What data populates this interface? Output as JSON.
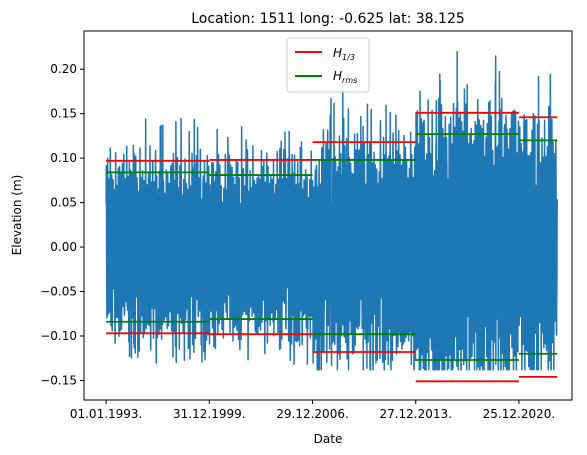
{
  "chart_data": {
    "type": "line",
    "title": "Location: 1511 long: -0.625 lat: 38.125",
    "xlabel": "Date",
    "ylabel": "Elevation (m)",
    "x_ticks": [
      "01.01.1993.",
      "31.12.1999.",
      "29.12.2006.",
      "27.12.2013.",
      "25.12.2020."
    ],
    "x_range": [
      "1993-01",
      "2023-07"
    ],
    "ylim": [
      -0.172,
      0.243
    ],
    "y_ticks": [
      -0.15,
      -0.1,
      -0.05,
      0.0,
      0.05,
      0.1,
      0.15,
      0.2
    ],
    "y_tick_labels": [
      "−0.15",
      "−0.10",
      "−0.05",
      "0.00",
      "0.05",
      "0.10",
      "0.15",
      "0.20"
    ],
    "legend": {
      "position": "top-center",
      "entries": [
        {
          "label_main": "H",
          "label_sub": "1/3",
          "color": "#ff0000"
        },
        {
          "label_main": "H",
          "label_sub": "rms",
          "color": "#008000"
        }
      ]
    },
    "series": [
      {
        "name": "Elevation",
        "color": "#1f77b4",
        "x_range_years": [
          1993.0,
          2023.6
        ],
        "y_range": [
          -0.138,
          0.225
        ],
        "description": "dense oscillating sea level time series"
      },
      {
        "name": "H1/3",
        "color": "#ff0000",
        "segments": [
          {
            "from": 1993.0,
            "to": 2000.0,
            "upper": 0.097,
            "lower": -0.097
          },
          {
            "from": 2000.0,
            "to": 2007.0,
            "upper": 0.098,
            "lower": -0.098
          },
          {
            "from": 2007.0,
            "to": 2014.0,
            "upper": 0.118,
            "lower": -0.118
          },
          {
            "from": 2014.0,
            "to": 2021.0,
            "upper": 0.151,
            "lower": -0.151
          },
          {
            "from": 2021.0,
            "to": 2023.6,
            "upper": 0.146,
            "lower": -0.146
          }
        ]
      },
      {
        "name": "Hrms",
        "color": "#008000",
        "segments": [
          {
            "from": 1993.0,
            "to": 2000.0,
            "upper": 0.084,
            "lower": -0.084
          },
          {
            "from": 2000.0,
            "to": 2007.0,
            "upper": 0.081,
            "lower": -0.081
          },
          {
            "from": 2007.0,
            "to": 2014.0,
            "upper": 0.098,
            "lower": -0.098
          },
          {
            "from": 2014.0,
            "to": 2021.0,
            "upper": 0.127,
            "lower": -0.127
          },
          {
            "from": 2021.0,
            "to": 2023.6,
            "upper": 0.12,
            "lower": -0.12
          }
        ]
      }
    ]
  }
}
